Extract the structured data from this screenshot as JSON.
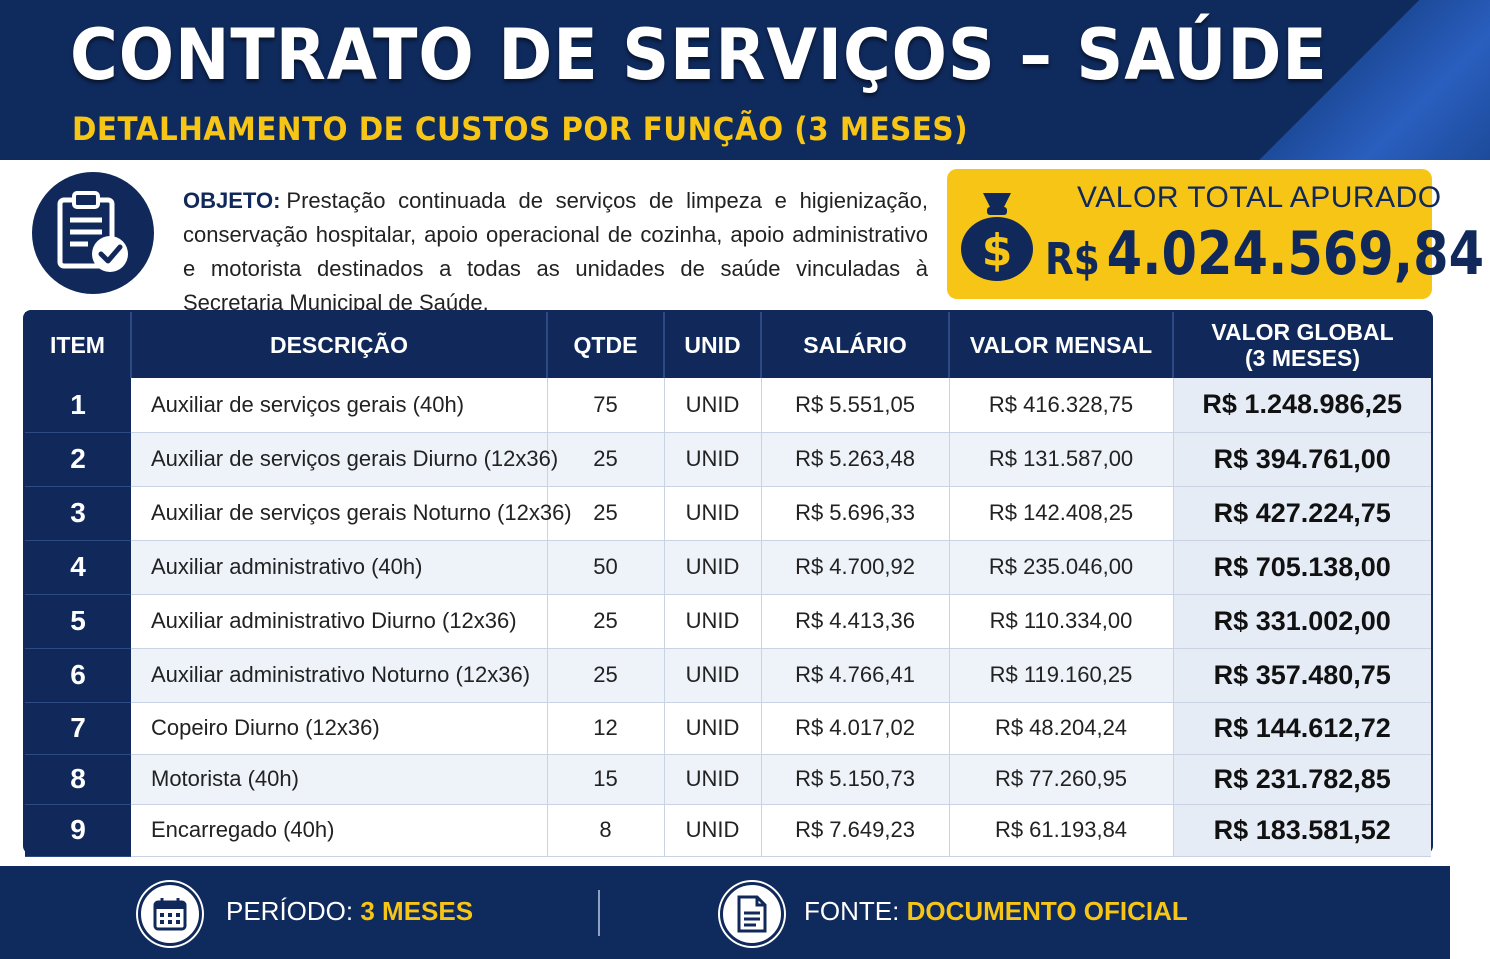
{
  "header": {
    "title": "CONTRATO DE SERVIÇOS – SAÚDE",
    "subtitle": "DETALHAMENTO DE CUSTOS POR FUNÇÃO (3 MESES)"
  },
  "object": {
    "label": "OBJETO:",
    "text": "Prestação continuada de serviços de limpeza e higienização, conservação hospitalar, apoio operacional de cozinha, apoio administrativo e motorista destinados a todas as unidades de saúde vinculadas à Secretaria Municipal de Saúde."
  },
  "total": {
    "label": "VALOR TOTAL APURADO",
    "currency": "R$",
    "amount": "4.024.569,84",
    "bag_symbol": "$"
  },
  "table": {
    "headers": {
      "item": "ITEM",
      "desc": "DESCRIÇÃO",
      "qty": "QTDE",
      "unit": "UNID",
      "salary": "SALÁRIO",
      "monthly": "VALOR MENSAL",
      "global_line1": "VALOR GLOBAL",
      "global_line2": "(3 MESES)"
    },
    "rows": [
      {
        "item": "1",
        "desc": "Auxiliar de serviços gerais (40h)",
        "qty": "75",
        "unit": "UNID",
        "salary": "R$ 5.551,05",
        "monthly": "R$ 416.328,75",
        "global": "R$ 1.248.986,25"
      },
      {
        "item": "2",
        "desc": "Auxiliar de serviços gerais Diurno (12x36)",
        "qty": "25",
        "unit": "UNID",
        "salary": "R$ 5.263,48",
        "monthly": "R$ 131.587,00",
        "global": "R$ 394.761,00"
      },
      {
        "item": "3",
        "desc": "Auxiliar de serviços gerais Noturno (12x36)",
        "qty": "25",
        "unit": "UNID",
        "salary": "R$ 5.696,33",
        "monthly": "R$ 142.408,25",
        "global": "R$ 427.224,75"
      },
      {
        "item": "4",
        "desc": "Auxiliar administrativo (40h)",
        "qty": "50",
        "unit": "UNID",
        "salary": "R$ 4.700,92",
        "monthly": "R$ 235.046,00",
        "global": "R$ 705.138,00"
      },
      {
        "item": "5",
        "desc": "Auxiliar administrativo Diurno (12x36)",
        "qty": "25",
        "unit": "UNID",
        "salary": "R$ 4.413,36",
        "monthly": "R$ 110.334,00",
        "global": "R$ 331.002,00"
      },
      {
        "item": "6",
        "desc": "Auxiliar administrativo Noturno (12x36)",
        "qty": "25",
        "unit": "UNID",
        "salary": "R$ 4.766,41",
        "monthly": "R$ 119.160,25",
        "global": "R$ 357.480,75"
      },
      {
        "item": "7",
        "desc": "Copeiro Diurno (12x36)",
        "qty": "12",
        "unit": "UNID",
        "salary": "R$ 4.017,02",
        "monthly": "R$ 48.204,24",
        "global": "R$ 144.612,72"
      },
      {
        "item": "8",
        "desc": "Motorista (40h)",
        "qty": "15",
        "unit": "UNID",
        "salary": "R$ 5.150,73",
        "monthly": "R$ 77.260,95",
        "global": "R$ 231.782,85"
      },
      {
        "item": "9",
        "desc": "Encarregado (40h)",
        "qty": "8",
        "unit": "UNID",
        "salary": "R$ 7.649,23",
        "monthly": "R$ 61.193,84",
        "global": "R$ 183.581,52"
      }
    ]
  },
  "footer": {
    "period_label": "PERÍODO:",
    "period_value": "3 MESES",
    "source_label": "FONTE:",
    "source_value": "DOCUMENTO OFICIAL"
  },
  "icons": {
    "object": "clipboard-check-icon",
    "total": "money-bag-icon",
    "period": "calendar-icon",
    "source": "document-icon"
  },
  "colors": {
    "navy": "#10295a",
    "yellow": "#f7c515"
  }
}
